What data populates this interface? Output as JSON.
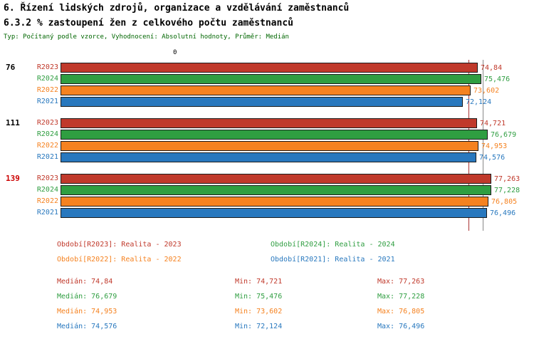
{
  "header": {
    "title_line1": "6. Řízení lidských zdrojů, organizace a vzdělávání zaměstnanců",
    "title_line2": "6.3.2 % zastoupení žen z celkového počtu zaměstnanců",
    "subtitle": "Typ: Počítaný podle vzorce, Vyhodnocení: Absolutní hodnoty, Průměr: Medián"
  },
  "chart_data": {
    "type": "bar",
    "orientation": "horizontal",
    "axis_origin_label": "0",
    "xlim": [
      0,
      80
    ],
    "categories": [
      "76",
      "111",
      "139"
    ],
    "series": [
      {
        "id": "R2023",
        "label": "R2023",
        "color": "#c0392b"
      },
      {
        "id": "R2024",
        "label": "R2024",
        "color": "#2f9e41"
      },
      {
        "id": "R2022",
        "label": "R2022",
        "color": "#f58220"
      },
      {
        "id": "R2021",
        "label": "R2021",
        "color": "#2878be"
      }
    ],
    "groups": [
      {
        "label": "76",
        "label_color": "#000000",
        "values": [
          {
            "series": "R2023",
            "value": 74.84,
            "display": "74,84"
          },
          {
            "series": "R2024",
            "value": 75.476,
            "display": "75,476"
          },
          {
            "series": "R2022",
            "value": 73.602,
            "display": "73,602"
          },
          {
            "series": "R2021",
            "value": 72.124,
            "display": "72,124"
          }
        ]
      },
      {
        "label": "111",
        "label_color": "#000000",
        "values": [
          {
            "series": "R2023",
            "value": 74.721,
            "display": "74,721"
          },
          {
            "series": "R2024",
            "value": 76.679,
            "display": "76,679"
          },
          {
            "series": "R2022",
            "value": 74.953,
            "display": "74,953"
          },
          {
            "series": "R2021",
            "value": 74.576,
            "display": "74,576"
          }
        ]
      },
      {
        "label": "139",
        "label_color": "#cc0000",
        "values": [
          {
            "series": "R2023",
            "value": 77.263,
            "display": "77,263"
          },
          {
            "series": "R2024",
            "value": 77.228,
            "display": "77,228"
          },
          {
            "series": "R2022",
            "value": 76.805,
            "display": "76,805"
          },
          {
            "series": "R2021",
            "value": 76.496,
            "display": "76,496"
          }
        ]
      }
    ],
    "markers": [
      {
        "value": 73.2,
        "color": "#aa3333"
      },
      {
        "value": 75.7,
        "color": "#888888"
      }
    ],
    "legend": [
      {
        "text": "Období[R2023]: Realita - 2023",
        "color": "#c0392b"
      },
      {
        "text": "Období[R2024]: Realita - 2024",
        "color": "#2f9e41"
      },
      {
        "text": "Období[R2022]: Realita - 2022",
        "color": "#f58220"
      },
      {
        "text": "Období[R2021]: Realita - 2021",
        "color": "#2878be"
      }
    ],
    "stats": [
      {
        "median": "Medián: 74,84",
        "min": "Min: 74,721",
        "max": "Max: 77,263",
        "color": "#c0392b"
      },
      {
        "median": "Medián: 76,679",
        "min": "Min: 75,476",
        "max": "Max: 77,228",
        "color": "#2f9e41"
      },
      {
        "median": "Medián: 74,953",
        "min": "Min: 73,602",
        "max": "Max: 76,805",
        "color": "#f58220"
      },
      {
        "median": "Medián: 74,576",
        "min": "Min: 72,124",
        "max": "Max: 76,496",
        "color": "#2878be"
      }
    ]
  }
}
